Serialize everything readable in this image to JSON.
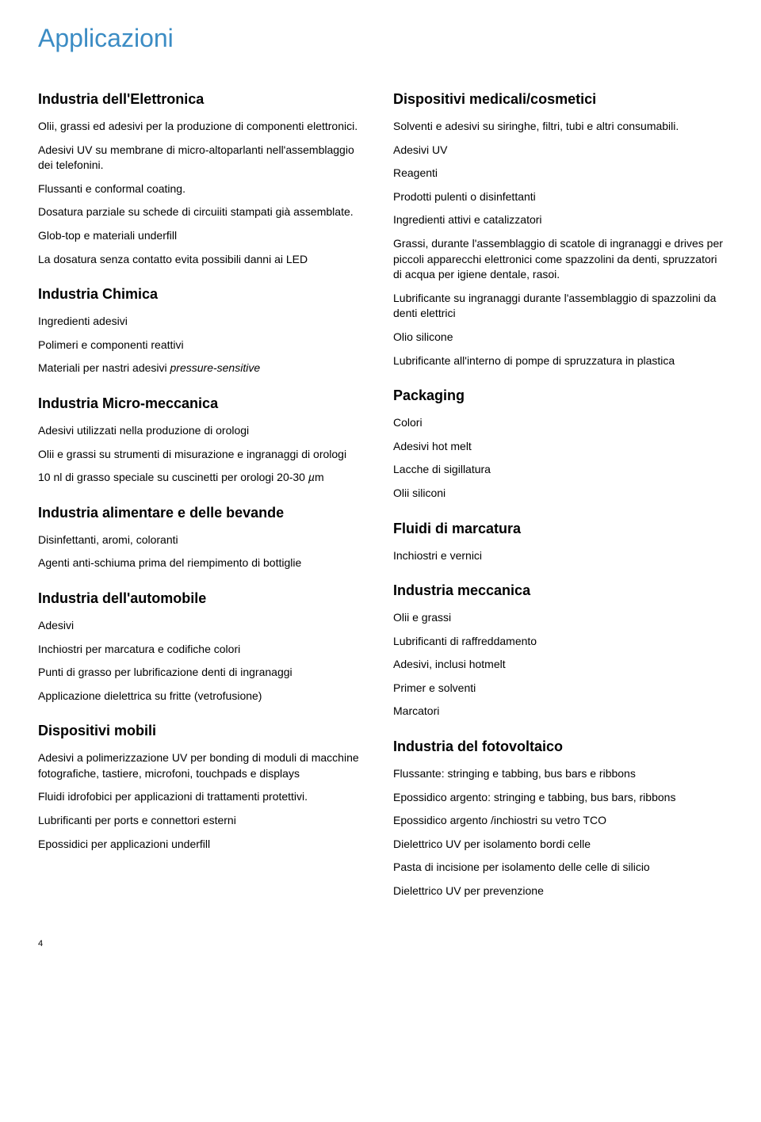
{
  "main_title": "Applicazioni",
  "left": {
    "s1": {
      "heading": "Industria dell'Elettronica",
      "items": [
        "Olii, grassi ed adesivi per la produzione di componenti elettronici.",
        "Adesivi UV su membrane di micro-altoparlanti nell'assemblaggio dei telefonini.",
        "Flussanti e conformal coating.",
        "Dosatura parziale su schede di circuiiti stampati già assemblate.",
        "Glob-top e materiali underfill",
        "La dosatura senza contatto evita possibili danni ai LED"
      ]
    },
    "s2": {
      "heading": "Industria Chimica",
      "items": [
        "Ingredienti adesivi",
        "Polimeri e componenti reattivi",
        "Materiali per nastri adesivi pressure-sensitive"
      ]
    },
    "s3": {
      "heading": "Industria Micro-meccanica",
      "items": [
        "Adesivi utilizzati nella produzione di orologi",
        "Olii e grassi su strumenti di misurazione e ingranaggi di orologi",
        "10 nl di grasso speciale su cuscinetti per orologi  20-30 µm"
      ]
    },
    "s4": {
      "heading": "Industria alimentare e delle bevande",
      "items": [
        "Disinfettanti, aromi, coloranti",
        "Agenti anti-schiuma prima del riempimento di bottiglie"
      ]
    },
    "s5": {
      "heading": "Industria dell'automobile",
      "items": [
        "Adesivi",
        "Inchiostri per marcatura e codifiche colori",
        "Punti di grasso per lubrificazione denti di ingranaggi",
        "Applicazione dielettrica su fritte (vetrofusione)"
      ]
    },
    "s6": {
      "heading": "Dispositivi mobili",
      "items": [
        "Adesivi a polimerizzazione UV per bonding di moduli di macchine fotografiche, tastiere, microfoni, touchpads e displays",
        "Fluidi idrofobici per applicazioni di trattamenti protettivi.",
        "Lubrificanti per ports e connettori esterni",
        "Epossidici per applicazioni underfill"
      ]
    }
  },
  "right": {
    "s1": {
      "heading": "Dispositivi medicali/cosmetici",
      "items": [
        "Solventi e adesivi su siringhe, filtri, tubi e altri consumabili.",
        "Adesivi UV",
        "Reagenti",
        "Prodotti pulenti o disinfettanti",
        "Ingredienti attivi e catalizzatori",
        "Grassi, durante l'assemblaggio di scatole di ingranaggi e drives per piccoli apparecchi elettronici come spazzolini da denti, spruzzatori di acqua per igiene dentale, rasoi.",
        "Lubrificante su ingranaggi durante l'assemblaggio di spazzolini da denti elettrici",
        "Olio silicone",
        "Lubrificante all'interno di pompe di spruzzatura in plastica"
      ]
    },
    "s2": {
      "heading": "Packaging",
      "items": [
        "Colori",
        "Adesivi hot melt",
        "Lacche di sigillatura",
        "Olii siliconi"
      ]
    },
    "s3": {
      "heading": "Fluidi di marcatura",
      "items": [
        "Inchiostri e vernici"
      ]
    },
    "s4": {
      "heading": "Industria meccanica",
      "items": [
        "Olii e grassi",
        "Lubrificanti di raffreddamento",
        "Adesivi, inclusi hotmelt",
        "Primer e solventi",
        "Marcatori"
      ]
    },
    "s5": {
      "heading": "Industria del fotovoltaico",
      "items": [
        "Flussante: stringing e tabbing,  bus bars e ribbons",
        "Epossidico argento: stringing e tabbing, bus bars, ribbons",
        "Epossidico argento /inchiostri su vetro TCO",
        "Dielettrico UV per isolamento bordi celle",
        "Pasta di incisione per isolamento delle celle di silicio",
        "Dielettrico UV per prevenzione"
      ]
    }
  },
  "page_number": "4"
}
